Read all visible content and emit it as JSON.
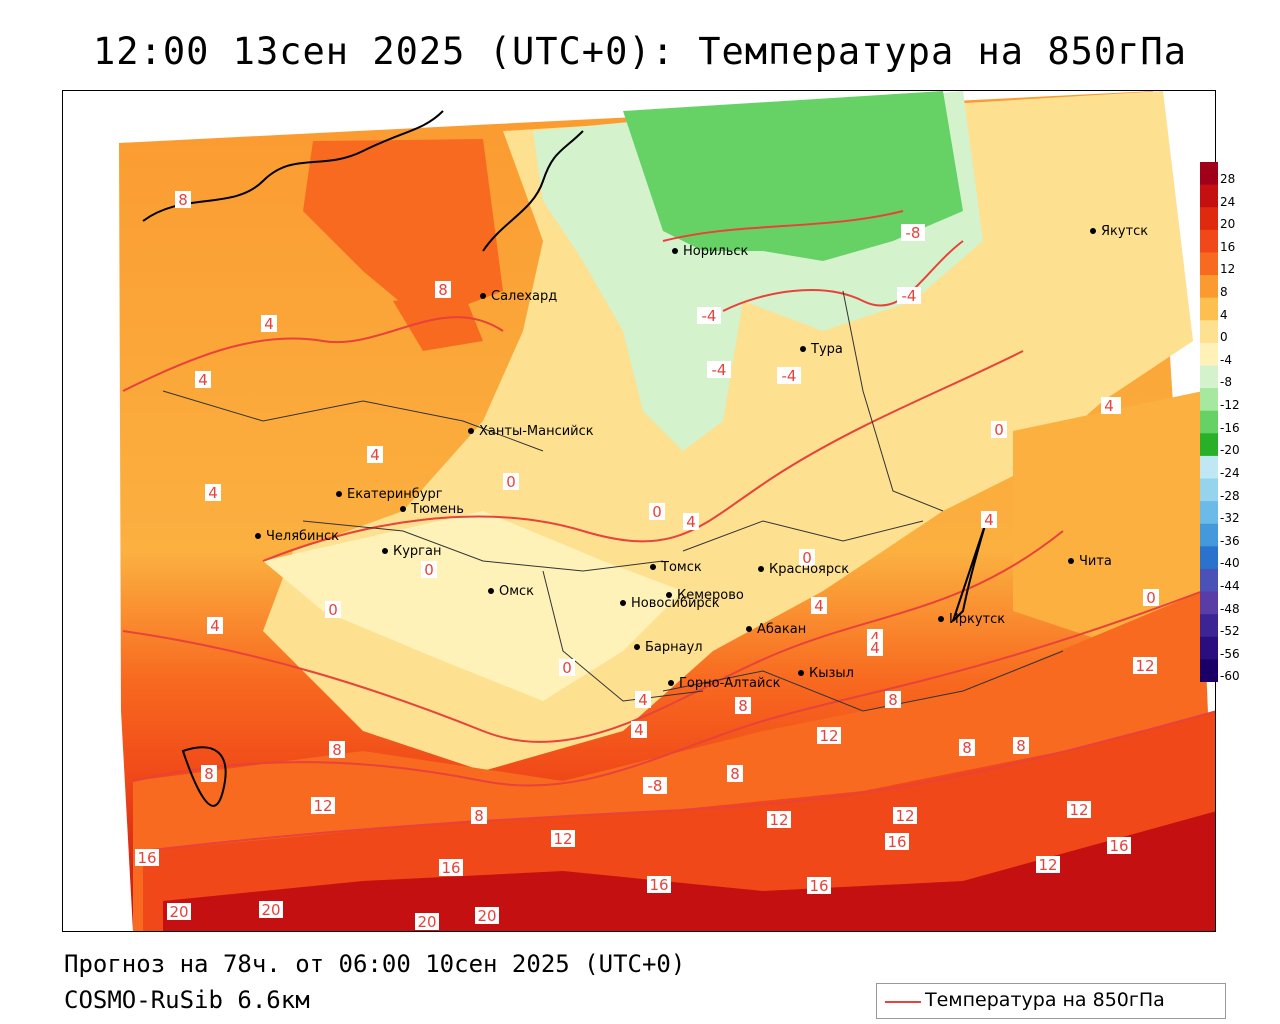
{
  "title": "12:00 13сен 2025 (UTC+0): Температура на 850гПа",
  "footer": {
    "forecast": "Прогноз на 78ч. от 06:00 10сен 2025 (UTC+0)",
    "model": "COSMO-RuSib 6.6км"
  },
  "legend": {
    "label": "Температура на 850гПа",
    "line_color": "#e8423a"
  },
  "colorbar": {
    "ticks": [
      "28",
      "24",
      "20",
      "16",
      "12",
      "8",
      "4",
      "0",
      "-4",
      "-8",
      "-12",
      "-16",
      "-20",
      "-24",
      "-28",
      "-32",
      "-36",
      "-40",
      "-44",
      "-48",
      "-52",
      "-56",
      "-60"
    ],
    "colors": [
      "#a0001a",
      "#c41010",
      "#e02a10",
      "#f04818",
      "#f86a20",
      "#fb9a30",
      "#fdc050",
      "#fde090",
      "#fef2b8",
      "#d4f2cc",
      "#a6e8a0",
      "#66d266",
      "#28b028",
      "#bfe8f4",
      "#96d4ee",
      "#6cbae8",
      "#4498dc",
      "#2a72cc",
      "#4a52b8",
      "#5a3ca6",
      "#3c2494",
      "#2a0e80",
      "#1a0066"
    ]
  },
  "cities": [
    {
      "name": "Салехард"
    },
    {
      "name": "Норильск"
    },
    {
      "name": "Якутск"
    },
    {
      "name": "Тура"
    },
    {
      "name": "Ханты-Мансийск"
    },
    {
      "name": "Екатеринбург"
    },
    {
      "name": "Тюмень"
    },
    {
      "name": "Челябинск"
    },
    {
      "name": "Курган"
    },
    {
      "name": "Омск"
    },
    {
      "name": "Томск"
    },
    {
      "name": "Красноярск"
    },
    {
      "name": "Новосибирск"
    },
    {
      "name": "Кемерово"
    },
    {
      "name": "Абакан"
    },
    {
      "name": "Барнаул"
    },
    {
      "name": "Горно-Алтайск"
    },
    {
      "name": "Кызыл"
    },
    {
      "name": "Иркутск"
    },
    {
      "name": "Чита"
    }
  ],
  "isotherm_labels": [
    "8",
    "8",
    "4",
    "4",
    "4",
    "4",
    "-8",
    "-4",
    "-4",
    "-4",
    "-4",
    "0",
    "0",
    "0",
    "4",
    "0",
    "0",
    "4",
    "0",
    "4",
    "0",
    "4",
    "4",
    "8",
    "8",
    "12",
    "8",
    "12",
    "12",
    "16",
    "16",
    "20",
    "20",
    "20",
    "20",
    "16",
    "16",
    "16",
    "16",
    "12",
    "12",
    "12",
    "8",
    "8",
    "8",
    "8",
    "0",
    "4",
    "4",
    "8",
    "12",
    "12",
    "-8",
    "0",
    "4",
    "4",
    "4"
  ]
}
